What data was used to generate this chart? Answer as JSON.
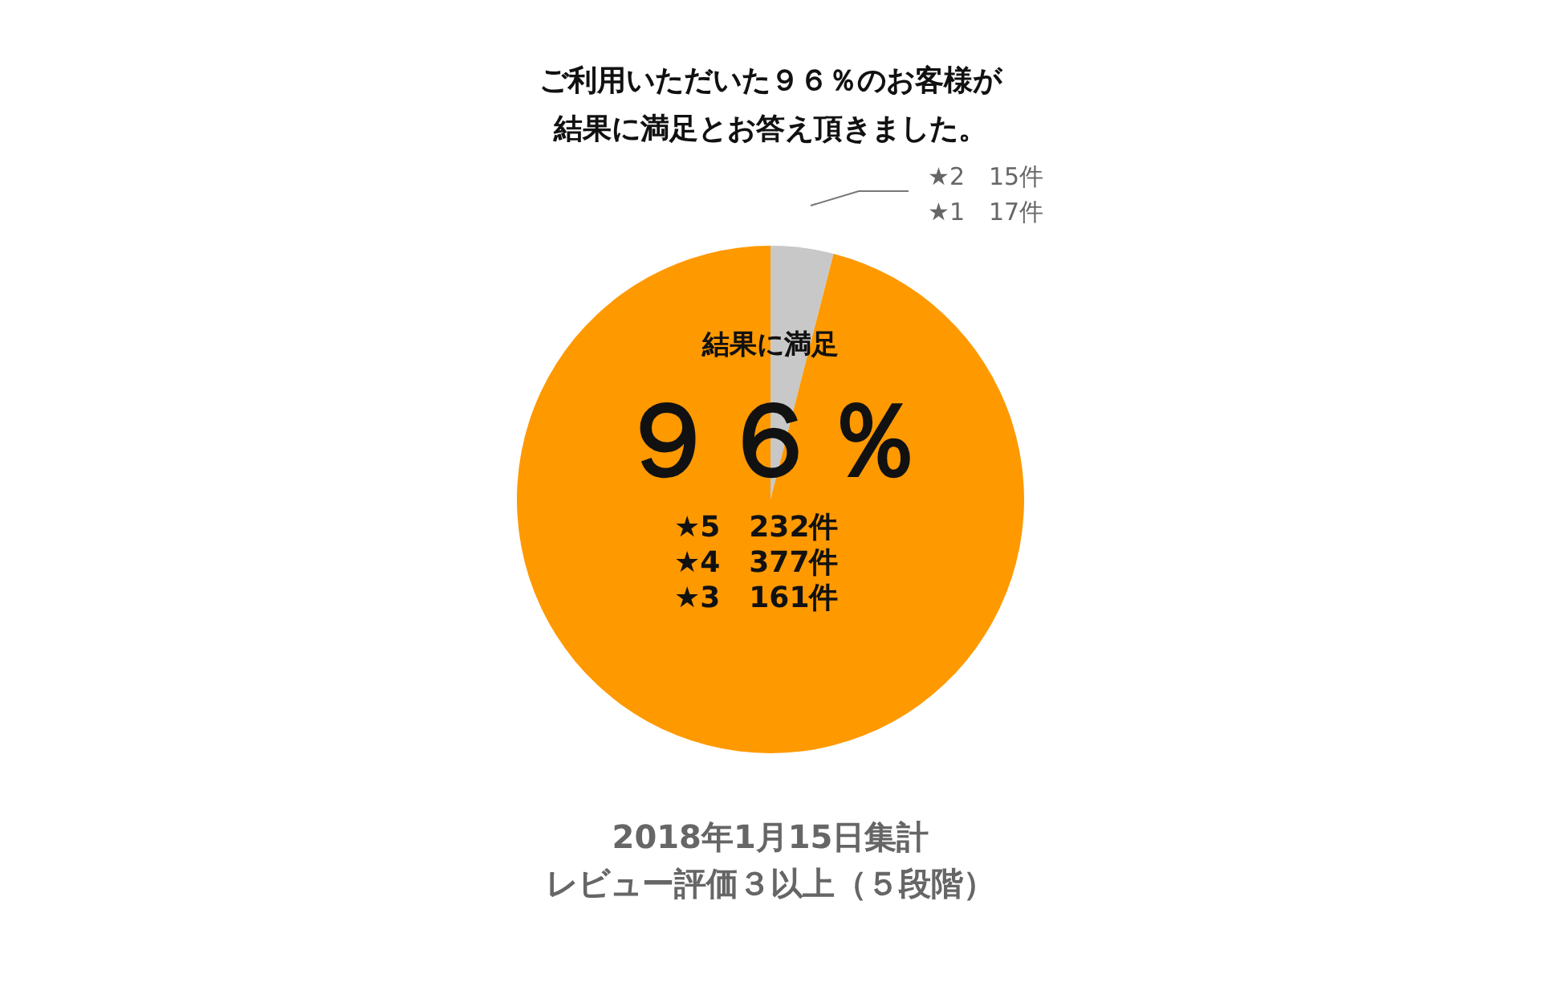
{
  "chart_data": {
    "type": "pie",
    "title": "ご利用いただいた９６％のお客様が結果に満足とお答え頂きました。",
    "categories": [
      null,
      "結果に満足"
    ],
    "values": [
      4,
      96
    ],
    "colors": [
      "#c8c8c8",
      "#ff9900"
    ],
    "value_labels": [
      null,
      "９６％"
    ],
    "legend": false,
    "annotations": [
      "★2　15件",
      "★1　17件",
      "★5　232件",
      "★4　377件",
      "★3　161件",
      "2018年1月15日集計",
      "レビュー評価３以上（５段階）"
    ]
  }
}
